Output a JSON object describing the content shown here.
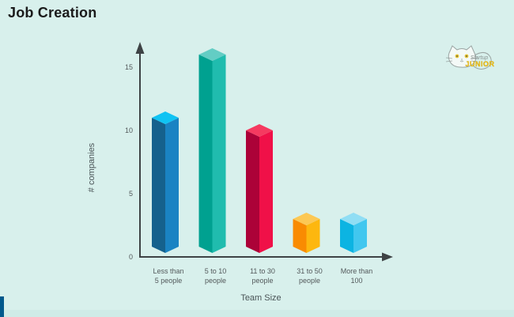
{
  "page": {
    "title": "Job Creation"
  },
  "logo": {
    "script_text": "Startup",
    "block_text": "JUNIOR"
  },
  "colors": {
    "background": "#d8f0ec",
    "footer_band": "#cfebe7",
    "accent_strip": "#00598c",
    "axis": "#3e4345",
    "tick_text": "#53595b",
    "title_text": "#1b1b1b",
    "logo_yellow": "#f2c51d"
  },
  "chart_data": {
    "type": "bar",
    "style": "isometric-3d-columns",
    "title": "Job Creation",
    "categories": [
      "Less than 5 people",
      "5 to 10 people",
      "11 to 30 people",
      "31 to 50 people",
      "More than 100"
    ],
    "categories_lines": [
      [
        "Less than",
        "5 people"
      ],
      [
        "5 to 10",
        "people"
      ],
      [
        "11 to 30",
        "people"
      ],
      [
        "31 to 50",
        "people"
      ],
      [
        "More than",
        "100"
      ]
    ],
    "values": [
      11,
      16,
      10,
      3,
      3
    ],
    "xlabel": "Team Size",
    "ylabel": "# companies",
    "yticks": [
      0,
      5,
      10,
      15
    ],
    "ylim": [
      0,
      17
    ],
    "grid": false,
    "legend": "none",
    "bar_colors": [
      {
        "left": "#15618d",
        "right": "#1a83c3",
        "top": "#10c3f3"
      },
      {
        "left": "#00a190",
        "right": "#20bcae",
        "top": "#63cdc4"
      },
      {
        "left": "#ac0238",
        "right": "#f01048",
        "top": "#f53a60"
      },
      {
        "left": "#f98b02",
        "right": "#fdb70f",
        "top": "#fcc854"
      },
      {
        "left": "#0cb4e2",
        "right": "#41c7ef",
        "top": "#90def4"
      }
    ]
  }
}
